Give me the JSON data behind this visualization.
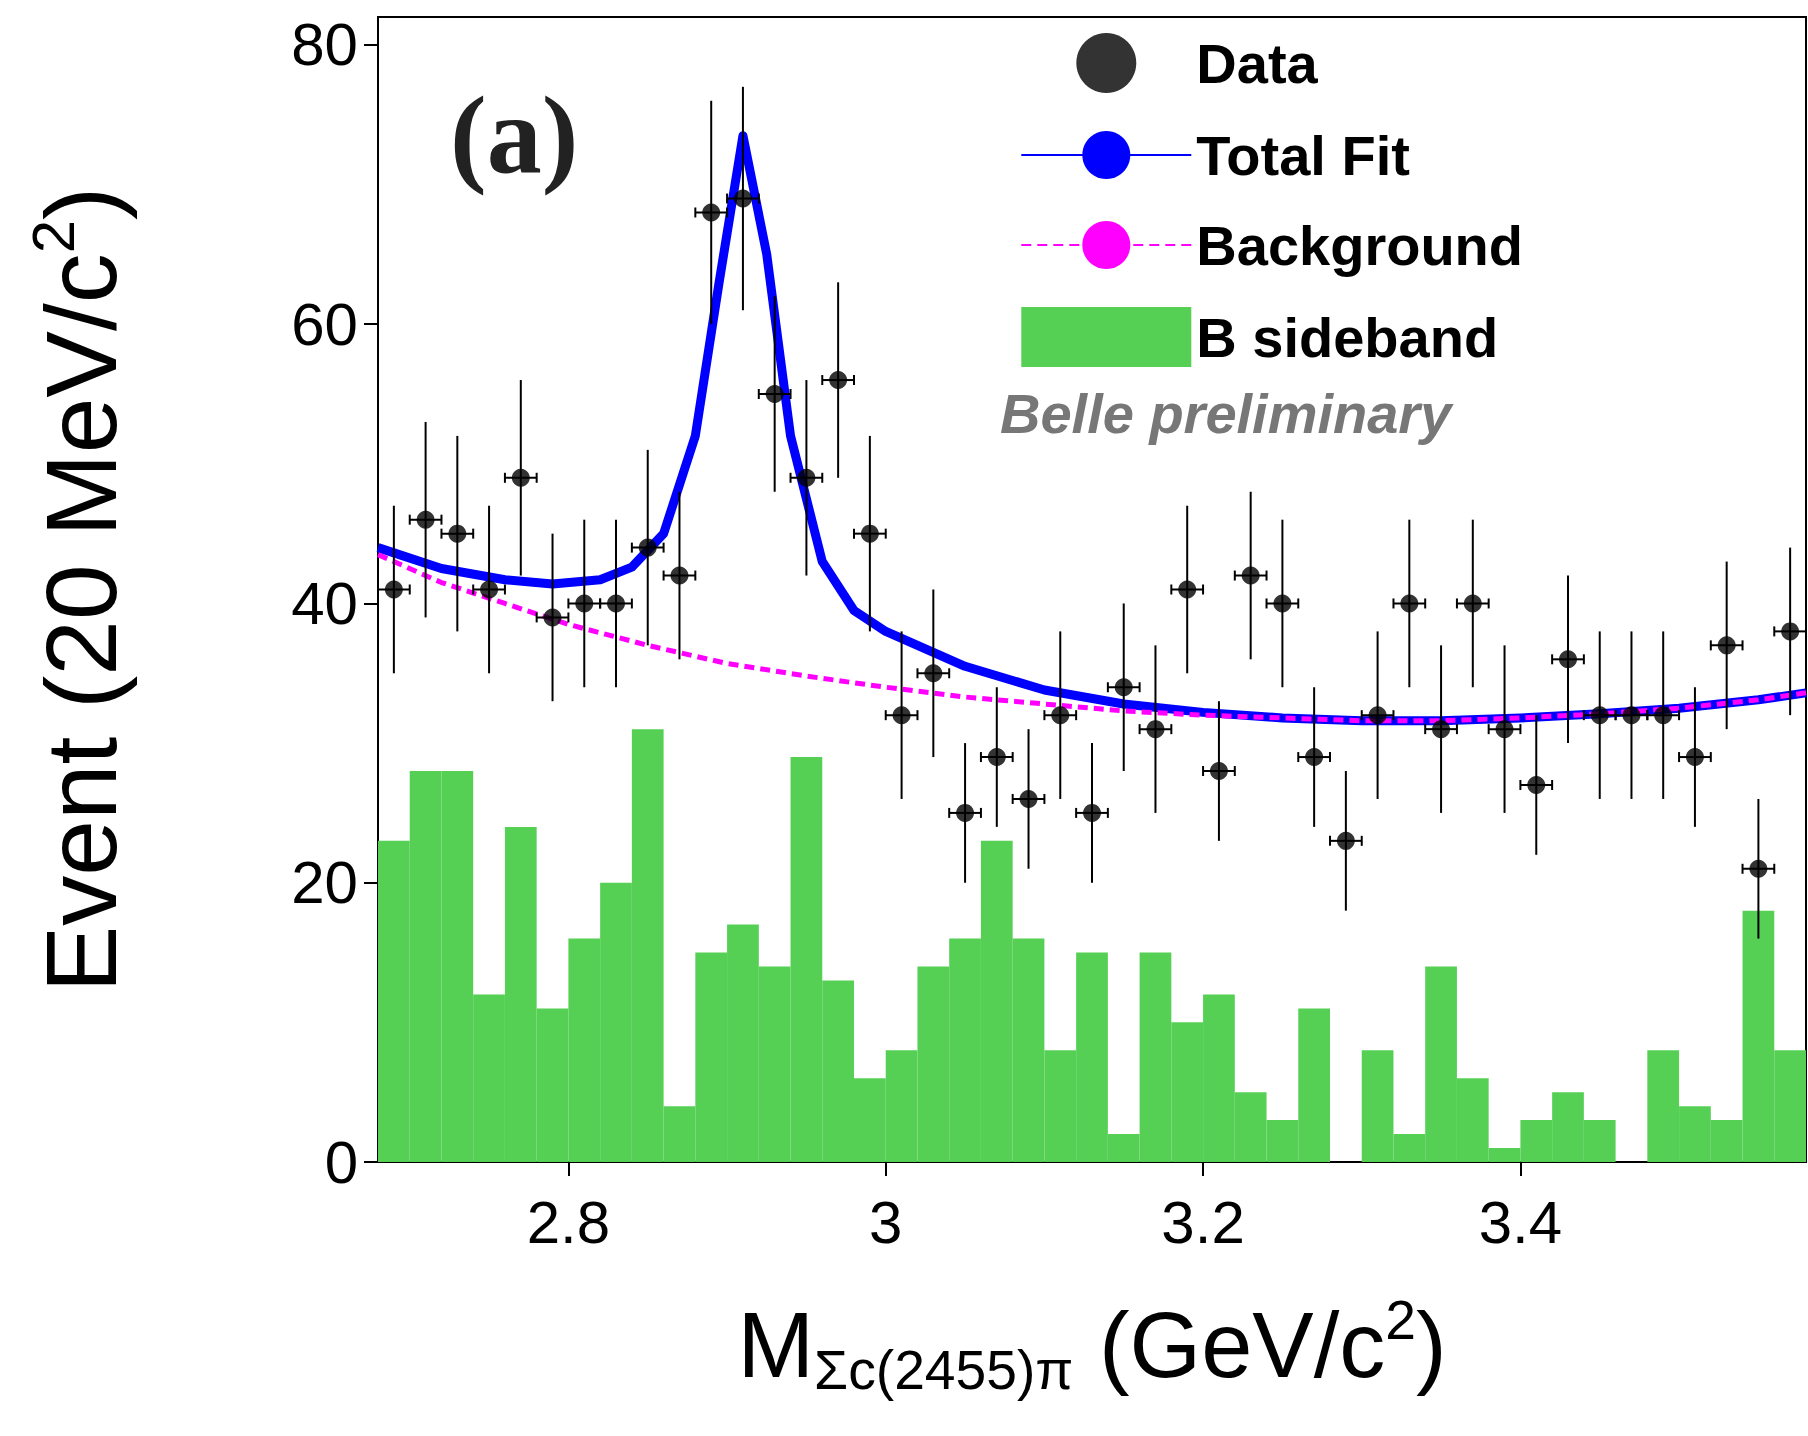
{
  "chart_data": {
    "type": "scatter",
    "xlabel": "M$_{Σc(2455)π}$ (GeV/c$^{2}$)",
    "ylabel": "Event (20 MeV/c$^{2}$)",
    "xlim": [
      2.68,
      3.58
    ],
    "xticks": [
      2.8,
      3,
      3.2,
      3.4
    ],
    "ylim": [
      0,
      82
    ],
    "yticks": [
      0,
      20,
      40,
      60,
      80
    ],
    "grid": false,
    "legend": "top right",
    "annotations": [
      "(a)",
      "Belle preliminary"
    ],
    "series": [
      {
        "name": "Data",
        "type": "scatter",
        "color": "#000000",
        "marker": "circle",
        "x": [
          2.69,
          2.71,
          2.73,
          2.75,
          2.77,
          2.79,
          2.81,
          2.83,
          2.85,
          2.87,
          2.89,
          2.91,
          2.93,
          2.95,
          2.97,
          2.99,
          3.01,
          3.03,
          3.05,
          3.07,
          3.09,
          3.11,
          3.13,
          3.15,
          3.17,
          3.19,
          3.21,
          3.23,
          3.25,
          3.27,
          3.29,
          3.31,
          3.33,
          3.35,
          3.37,
          3.39,
          3.41,
          3.43,
          3.45,
          3.47,
          3.49,
          3.51,
          3.53,
          3.55,
          3.57
        ],
        "values": [
          41,
          46,
          45,
          41,
          49,
          39,
          40,
          40,
          44,
          42,
          68,
          69,
          55,
          49,
          56,
          45,
          32,
          35,
          25,
          29,
          26,
          32,
          25,
          34,
          31,
          41,
          28,
          42,
          40,
          29,
          23,
          32,
          40,
          31,
          40,
          31,
          27,
          36,
          32,
          32,
          32,
          29,
          37,
          21,
          38
        ],
        "errors": [
          6,
          7,
          7,
          6,
          7,
          6,
          6,
          6,
          7,
          6,
          8,
          8,
          7,
          7,
          7,
          7,
          6,
          6,
          5,
          5,
          5,
          6,
          5,
          6,
          6,
          6,
          5,
          6,
          6,
          5,
          5,
          6,
          6,
          6,
          6,
          6,
          5,
          6,
          6,
          6,
          6,
          5,
          6,
          5,
          6
        ],
        "xerrors": [
          0.01,
          0.01,
          0.01,
          0.01,
          0.01,
          0.01,
          0.01,
          0.01,
          0.01,
          0.01,
          0.01,
          0.01,
          0.01,
          0.01,
          0.01,
          0.01,
          0.01,
          0.01,
          0.01,
          0.01,
          0.01,
          0.01,
          0.01,
          0.01,
          0.01,
          0.01,
          0.01,
          0.01,
          0.01,
          0.01,
          0.01,
          0.01,
          0.01,
          0.01,
          0.01,
          0.01,
          0.01,
          0.01,
          0.01,
          0.01,
          0.01,
          0.01,
          0.01,
          0.01,
          0.01
        ]
      },
      {
        "name": "Total Fit",
        "type": "line",
        "color": "#0000ff",
        "line_style": "solid",
        "x": [
          2.68,
          2.72,
          2.76,
          2.79,
          2.82,
          2.84,
          2.86,
          2.88,
          2.895,
          2.91,
          2.925,
          2.94,
          2.96,
          2.98,
          3.0,
          3.05,
          3.1,
          3.15,
          3.2,
          3.25,
          3.3,
          3.35,
          3.4,
          3.45,
          3.5,
          3.55,
          3.58
        ],
        "values": [
          44,
          42.5,
          41.7,
          41.4,
          41.7,
          42.6,
          45,
          52,
          63,
          73.5,
          65,
          52,
          43,
          39.5,
          38,
          35.5,
          33.8,
          32.8,
          32.2,
          31.8,
          31.6,
          31.6,
          31.8,
          32.1,
          32.5,
          33.1,
          33.6
        ]
      },
      {
        "name": "Background",
        "type": "line",
        "color": "#ff00ff",
        "line_style": "dashed",
        "x": [
          2.68,
          2.72,
          2.76,
          2.8,
          2.85,
          2.9,
          2.95,
          3.0,
          3.05,
          3.1,
          3.15,
          3.2,
          3.25,
          3.3,
          3.35,
          3.4,
          3.45,
          3.5,
          3.55,
          3.58
        ],
        "values": [
          43.5,
          41.5,
          40,
          38.5,
          37,
          35.7,
          34.8,
          34,
          33.3,
          32.8,
          32.3,
          32,
          31.8,
          31.6,
          31.6,
          31.8,
          32.1,
          32.5,
          33.1,
          33.6
        ]
      },
      {
        "name": "B sideband",
        "type": "histogram",
        "color": "#55d055",
        "bins": [
          2.68,
          2.7,
          2.72,
          2.74,
          2.76,
          2.78,
          2.8,
          2.82,
          2.84,
          2.86,
          2.88,
          2.9,
          2.92,
          2.94,
          2.96,
          2.98,
          3.0,
          3.02,
          3.04,
          3.06,
          3.08,
          3.1,
          3.12,
          3.14,
          3.16,
          3.18,
          3.2,
          3.22,
          3.24,
          3.26,
          3.28,
          3.3,
          3.32,
          3.34,
          3.36,
          3.38,
          3.4,
          3.42,
          3.44,
          3.46,
          3.48,
          3.5,
          3.52,
          3.54,
          3.56,
          3.58
        ],
        "values": [
          23,
          28,
          28,
          12,
          24,
          11,
          16,
          20,
          31,
          4,
          15,
          17,
          14,
          29,
          13,
          6,
          8,
          14,
          16,
          23,
          16,
          8,
          15,
          2,
          15,
          10,
          12,
          5,
          3,
          11,
          0,
          8,
          2,
          14,
          6,
          1,
          3,
          5,
          3,
          0,
          8,
          4,
          3,
          18,
          8
        ]
      }
    ]
  }
}
